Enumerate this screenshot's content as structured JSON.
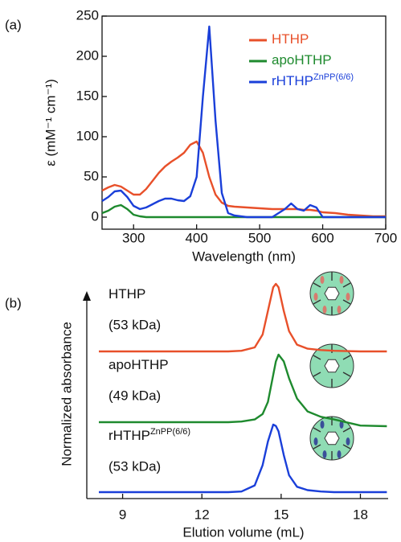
{
  "chart_data": [
    {
      "type": "line",
      "panel": "(a)",
      "y_label": "ε (mM⁻¹ cm⁻¹)",
      "x_label": "Wavelength (nm)",
      "x": [
        250,
        260,
        270,
        280,
        290,
        300,
        310,
        320,
        330,
        340,
        350,
        360,
        370,
        380,
        390,
        400,
        410,
        420,
        430,
        440,
        450,
        460,
        480,
        500,
        520,
        540,
        550,
        560,
        570,
        580,
        590,
        600,
        620,
        640,
        660,
        680,
        700
      ],
      "xlim": [
        250,
        700
      ],
      "xticks": [
        300,
        400,
        500,
        600,
        700
      ],
      "ylim": [
        -15,
        250
      ],
      "yticks": [
        0,
        50,
        100,
        150,
        200,
        250
      ],
      "legend": "upper right",
      "series": [
        {
          "name": "HTHP",
          "color": "#e8502a",
          "values": [
            33,
            37,
            40,
            38,
            33,
            28,
            28,
            35,
            45,
            55,
            63,
            69,
            74,
            80,
            90,
            94,
            80,
            50,
            28,
            18,
            14,
            13,
            12,
            11,
            10,
            10,
            10,
            10,
            9,
            9,
            8,
            6,
            5,
            3,
            2,
            1,
            1
          ]
        },
        {
          "name": "apoHTHP",
          "color": "#1e8a2e",
          "values": [
            5,
            8,
            13,
            15,
            10,
            3,
            1,
            0,
            0,
            0,
            0,
            0,
            0,
            0,
            0,
            0,
            0,
            0,
            0,
            0,
            0,
            0,
            0,
            0,
            0,
            0,
            0,
            0,
            0,
            0,
            0,
            0,
            0,
            0,
            0,
            0,
            0
          ]
        },
        {
          "name": "rHTHP",
          "name_superscript": "ZnPP(6/6)",
          "color": "#1a3fd9",
          "values": [
            20,
            25,
            32,
            33,
            25,
            14,
            10,
            12,
            16,
            20,
            23,
            23,
            21,
            20,
            26,
            50,
            150,
            237,
            120,
            30,
            5,
            2,
            0,
            0,
            0,
            10,
            17,
            10,
            8,
            15,
            12,
            0,
            0,
            0,
            0,
            0,
            0
          ]
        }
      ]
    },
    {
      "type": "line",
      "panel": "(b)",
      "y_label": "Normalized absorbance",
      "x_label": "Elution volume (mL)",
      "x": [
        8.1,
        13,
        13.5,
        14,
        14.3,
        14.5,
        14.7,
        14.8,
        14.9,
        15.1,
        15.3,
        15.6,
        16,
        16.5,
        17,
        18,
        19
      ],
      "xlim": [
        8.1,
        19.05
      ],
      "xticks": [
        9,
        12,
        15,
        18
      ],
      "series": [
        {
          "name": "HTHP",
          "mass": "(53 kDa)",
          "color": "#e8502a",
          "values": [
            0,
            0,
            0.01,
            0.06,
            0.25,
            0.6,
            0.95,
            1,
            0.95,
            0.6,
            0.3,
            0.1,
            0.04,
            0.02,
            0.01,
            0,
            0
          ]
        },
        {
          "name": "apoHTHP",
          "mass": "(49 kDa)",
          "color": "#1e8a2e",
          "values": [
            0,
            0,
            0.01,
            0.04,
            0.12,
            0.3,
            0.7,
            0.9,
            1,
            0.9,
            0.65,
            0.35,
            0.16,
            0.08,
            0.04,
            -0.05,
            -0.06
          ]
        },
        {
          "name": "rHTHP",
          "name_superscript": "ZnPP(6/6)",
          "mass": "(53 kDa)",
          "color": "#1a3fd9",
          "values": [
            0,
            0,
            0.01,
            0.1,
            0.4,
            0.75,
            1,
            0.98,
            0.9,
            0.55,
            0.25,
            0.08,
            0.03,
            0.01,
            0,
            0,
            0
          ]
        }
      ]
    }
  ]
}
